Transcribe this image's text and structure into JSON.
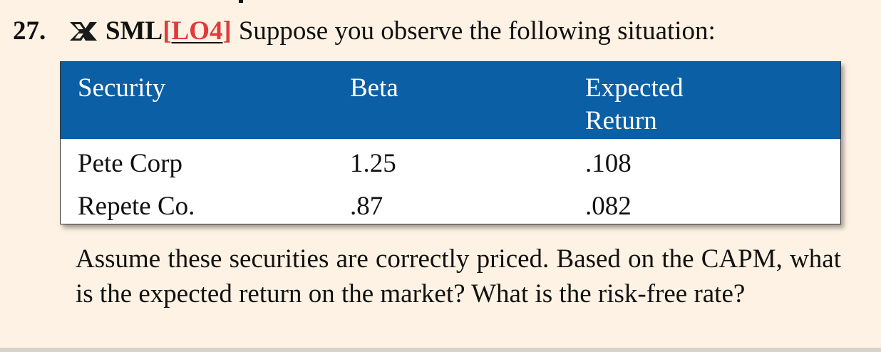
{
  "problem": {
    "number": "27.",
    "difficulty_icon": "crossed-x-difficulty-icon",
    "topic": "SML",
    "lo_open": "[",
    "lo_text": "LO4",
    "lo_close": "]",
    "question": "Suppose you observe the following situation:"
  },
  "table": {
    "headers": {
      "security": "Security",
      "beta": "Beta",
      "expected_line1": "Expected",
      "expected_line2": "Return"
    },
    "rows": [
      {
        "security": "Pete Corp",
        "beta": "1.25",
        "expected_return": ".108"
      },
      {
        "security": "Repete Co.",
        "beta": ".87",
        "expected_return": ".082"
      }
    ],
    "header_color": "#0b5fa5"
  },
  "paragraph": "Assume these securities are correctly priced. Based on the CAPM, what is the expected return on the market? What is the risk-free rate?",
  "colors": {
    "page_background": "#fdf2e3",
    "lo_color": "#e03a3a"
  }
}
